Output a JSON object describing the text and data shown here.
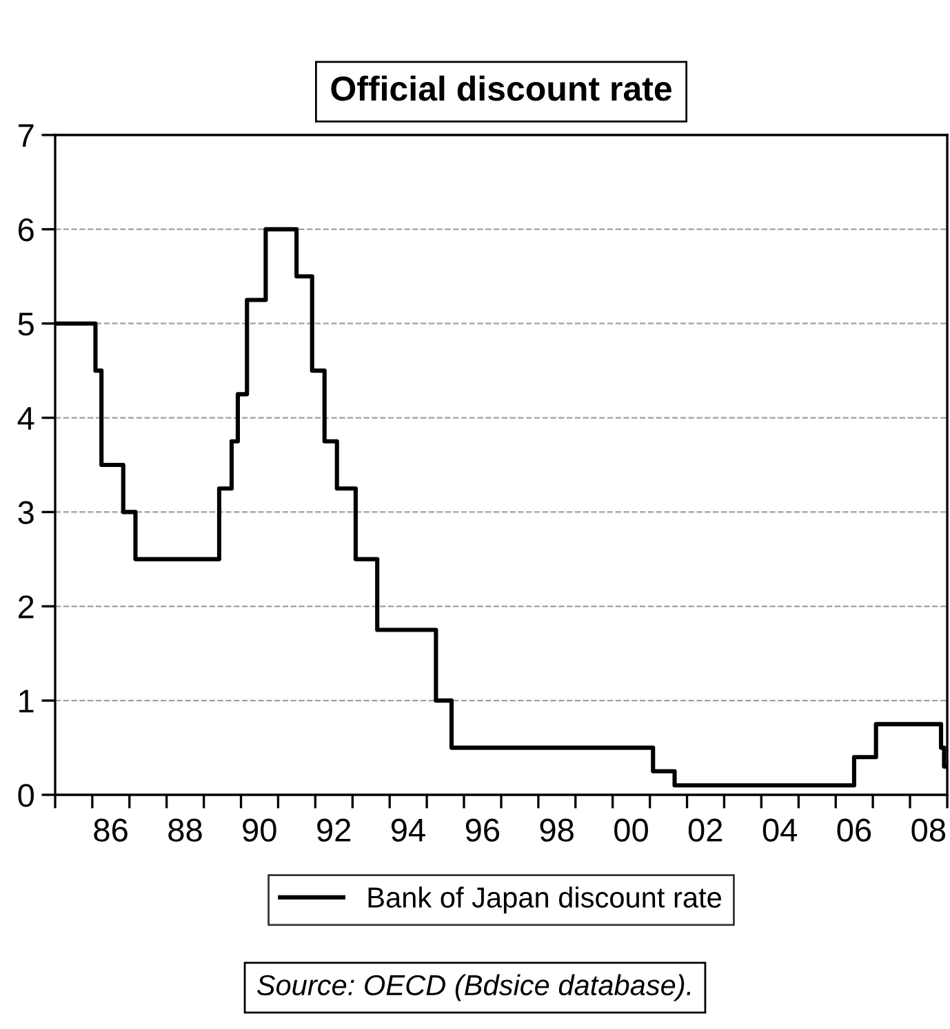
{
  "chart_data": {
    "type": "step",
    "title": "Official discount rate",
    "x": [
      "1985-01",
      "1986-02",
      "1986-04",
      "1986-11",
      "1987-03",
      "1989-06",
      "1989-10",
      "1989-12",
      "1990-03",
      "1990-09",
      "1991-07",
      "1991-12",
      "1992-04",
      "1992-08",
      "1993-02",
      "1993-09",
      "1995-04",
      "1995-09",
      "2001-02",
      "2001-09",
      "2006-07",
      "2007-02",
      "2008-11",
      "2008-12",
      "2009-01"
    ],
    "series": [
      {
        "name": "Bank of Japan discount rate",
        "color": "#000000",
        "values": [
          5.0,
          4.5,
          3.5,
          3.0,
          2.5,
          3.25,
          3.75,
          4.25,
          5.25,
          6.0,
          5.5,
          4.5,
          3.75,
          3.25,
          2.5,
          1.75,
          1.0,
          0.5,
          0.25,
          0.1,
          0.4,
          0.75,
          0.5,
          0.3,
          0.3
        ]
      }
    ],
    "xlim": [
      "1985-01",
      "2009-01"
    ],
    "xticks": [
      {
        "value": "1985-01",
        "label": null
      },
      {
        "value": "1986-01",
        "label": null
      },
      {
        "value": "1986-07",
        "label": "86"
      },
      {
        "value": "1987-01",
        "label": null
      },
      {
        "value": "1988-01",
        "label": null
      },
      {
        "value": "1988-07",
        "label": "88"
      },
      {
        "value": "1989-01",
        "label": null
      },
      {
        "value": "1990-01",
        "label": null
      },
      {
        "value": "1990-07",
        "label": "90"
      },
      {
        "value": "1991-01",
        "label": null
      },
      {
        "value": "1992-01",
        "label": null
      },
      {
        "value": "1992-07",
        "label": "92"
      },
      {
        "value": "1993-01",
        "label": null
      },
      {
        "value": "1994-01",
        "label": null
      },
      {
        "value": "1994-07",
        "label": "94"
      },
      {
        "value": "1995-01",
        "label": null
      },
      {
        "value": "1996-01",
        "label": null
      },
      {
        "value": "1996-07",
        "label": "96"
      },
      {
        "value": "1997-01",
        "label": null
      },
      {
        "value": "1998-01",
        "label": null
      },
      {
        "value": "1998-07",
        "label": "98"
      },
      {
        "value": "1999-01",
        "label": null
      },
      {
        "value": "2000-01",
        "label": null
      },
      {
        "value": "2000-07",
        "label": "00"
      },
      {
        "value": "2001-01",
        "label": null
      },
      {
        "value": "2002-01",
        "label": null
      },
      {
        "value": "2002-07",
        "label": "02"
      },
      {
        "value": "2003-01",
        "label": null
      },
      {
        "value": "2004-01",
        "label": null
      },
      {
        "value": "2004-07",
        "label": "04"
      },
      {
        "value": "2005-01",
        "label": null
      },
      {
        "value": "2006-01",
        "label": null
      },
      {
        "value": "2006-07",
        "label": "06"
      },
      {
        "value": "2007-01",
        "label": null
      },
      {
        "value": "2008-01",
        "label": null
      },
      {
        "value": "2008-07",
        "label": "08"
      },
      {
        "value": "2009-01",
        "label": null
      }
    ],
    "ylim": [
      0,
      7
    ],
    "yticks": [
      0,
      1,
      2,
      3,
      4,
      5,
      6,
      7
    ],
    "grid": "y",
    "legend": "bottom",
    "line_style": "solid",
    "annotations": [
      "Source: OECD (Bdsice database)."
    ]
  }
}
